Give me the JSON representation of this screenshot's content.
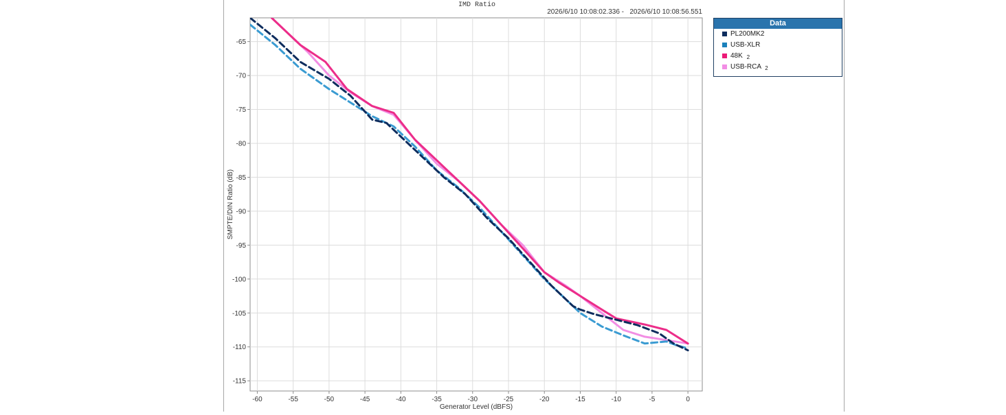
{
  "chart_data": {
    "type": "line",
    "title": "IMD Ratio",
    "timestamp": "2026/6/10 10:08:02.336 -   2026/6/10 10:08:56.551",
    "xlabel": "Generator Level (dBFS)",
    "ylabel": "SMPTE/DIN Ratio (dB)",
    "xlim": [
      -61,
      2
    ],
    "ylim": [
      -116.5,
      -61.5
    ],
    "xticks": [
      -60,
      -55,
      -50,
      -45,
      -40,
      -35,
      -30,
      -25,
      -20,
      -15,
      -10,
      -5,
      0
    ],
    "yticks": [
      -65,
      -70,
      -75,
      -80,
      -85,
      -90,
      -95,
      -100,
      -105,
      -110,
      -115
    ],
    "grid": true,
    "legend_title": "Data",
    "legend_position": "right-outside",
    "series": [
      {
        "name": "PL200MK2",
        "subscript": "",
        "color": "#0e2d5e",
        "dash": "dashed",
        "x": [
          -61,
          -57.5,
          -54,
          -50,
          -47,
          -44,
          -42,
          -40,
          -37,
          -34,
          -31,
          -28,
          -25,
          -22,
          -19,
          -16,
          -15,
          -13,
          -10,
          -7,
          -4,
          -2,
          0
        ],
        "y": [
          -61.5,
          -64.5,
          -68,
          -70.5,
          -73,
          -76.5,
          -77,
          -79,
          -82,
          -85,
          -87.5,
          -91,
          -94,
          -97.5,
          -101,
          -104,
          -104.5,
          -105.2,
          -106,
          -106.8,
          -108,
          -109.5,
          -110.5
        ]
      },
      {
        "name": "USB-XLR",
        "subscript": "",
        "color": "#3a9bd2",
        "dash": "dashed",
        "x": [
          -61,
          -57.5,
          -54,
          -50,
          -47,
          -44,
          -41,
          -38,
          -35,
          -32,
          -29,
          -26,
          -23,
          -20,
          -17,
          -15,
          -12,
          -9,
          -6,
          -3,
          -1.5,
          0
        ],
        "y": [
          -62.5,
          -65.5,
          -69,
          -72,
          -74,
          -76,
          -77.5,
          -80.5,
          -84,
          -86.5,
          -89.5,
          -93,
          -96.5,
          -100,
          -103,
          -105,
          -107,
          -108.3,
          -109.5,
          -109.2,
          -109.8,
          -110.2
        ]
      },
      {
        "name": "48K",
        "subscript": "2",
        "color": "#ec2d89",
        "dash": "solid",
        "x": [
          -58,
          -54,
          -50.5,
          -47.5,
          -44,
          -41,
          -38,
          -35,
          -32,
          -29,
          -26,
          -23,
          -20,
          -18,
          -15,
          -12,
          -10,
          -6,
          -3,
          0
        ],
        "y": [
          -61.5,
          -65.5,
          -68,
          -72,
          -74.5,
          -75.5,
          -79.5,
          -82.5,
          -85.5,
          -88.5,
          -92,
          -95.5,
          -99,
          -100.5,
          -102.5,
          -104.5,
          -105.8,
          -106.7,
          -107.5,
          -109.5
        ]
      },
      {
        "name": "USB-RCA",
        "subscript": "2",
        "color": "#f28ee4",
        "dash": "solid",
        "x": [
          -59,
          -56,
          -53,
          -50,
          -47,
          -44,
          -41,
          -38,
          -35,
          -32,
          -29,
          -26,
          -23,
          -20,
          -17,
          -15,
          -12,
          -9,
          -6,
          -3,
          0
        ],
        "y": [
          -60.5,
          -63.5,
          -66.5,
          -70,
          -72.5,
          -74.5,
          -75.8,
          -79.5,
          -83,
          -85.5,
          -88.5,
          -92,
          -95,
          -99,
          -101,
          -102.5,
          -105,
          -107.5,
          -108.5,
          -109,
          -109.5
        ]
      }
    ]
  }
}
